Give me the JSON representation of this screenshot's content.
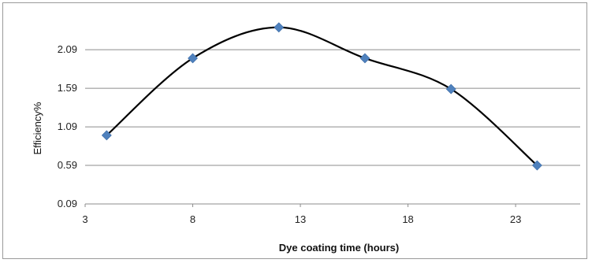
{
  "chart_data": {
    "type": "line",
    "title": "",
    "xlabel": "Dye coating time (hours)",
    "ylabel": "Efficiency%",
    "x": [
      4,
      8,
      12,
      16,
      20,
      24
    ],
    "values": [
      0.98,
      1.98,
      2.38,
      1.98,
      1.58,
      0.59
    ],
    "xlim": [
      3,
      26
    ],
    "ylim": [
      0.09,
      2.49
    ],
    "xticks": [
      "3",
      "8",
      "13",
      "18",
      "23"
    ],
    "yticks": [
      "0.09",
      "0.59",
      "1.09",
      "1.59",
      "2.09"
    ],
    "grid": "horizontal",
    "smooth": true,
    "line_color": "#000000",
    "marker_color": "#4f81bd",
    "marker": "diamond"
  }
}
